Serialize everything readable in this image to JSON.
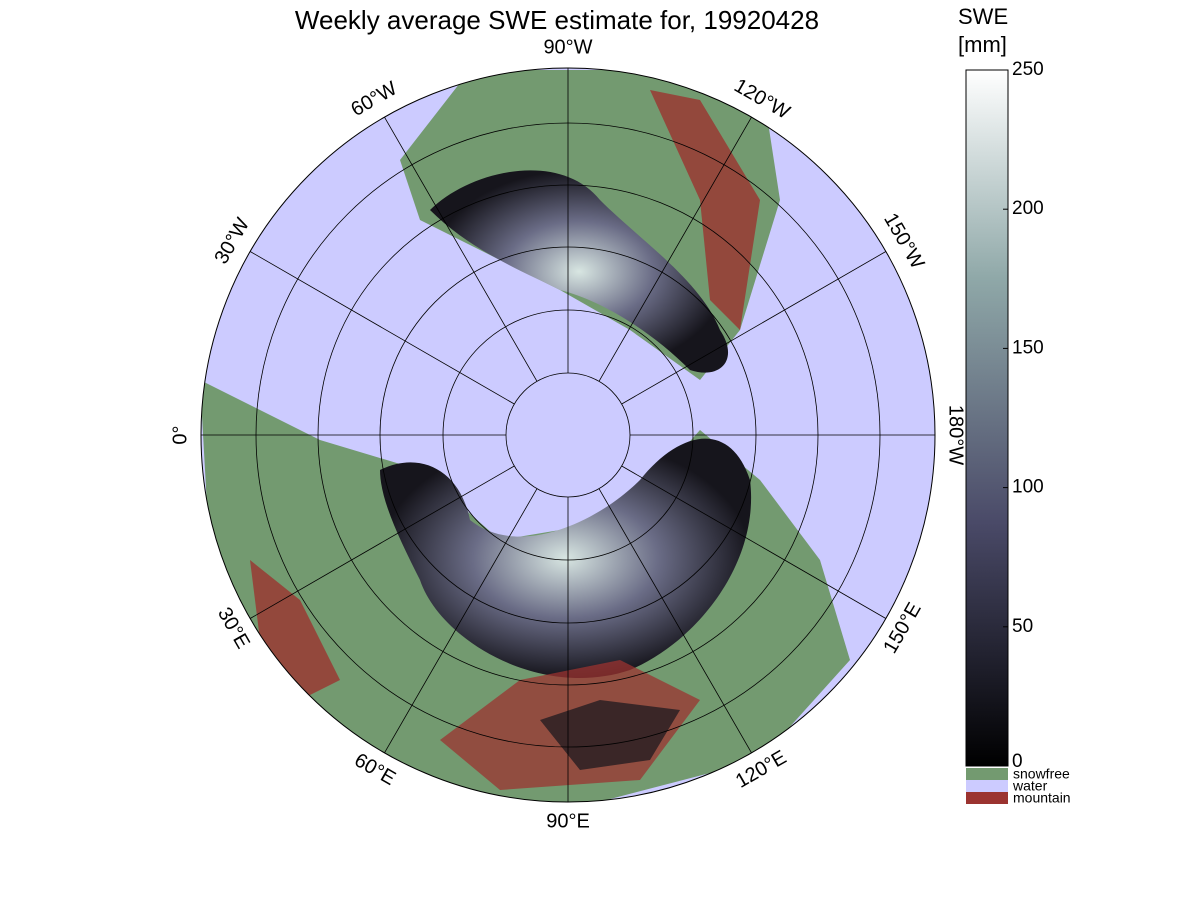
{
  "title": "Weekly average SWE estimate for, 19920428",
  "lon_labels": [
    "90°W",
    "120°W",
    "150°W",
    "180°W",
    "150°E",
    "120°E",
    "90°E",
    "60°E",
    "30°E",
    "0°",
    "30°W",
    "60°W"
  ],
  "colorbar": {
    "title": [
      "SWE",
      "[mm]"
    ],
    "lim": [
      0,
      250
    ],
    "ticks": [
      0,
      50,
      100,
      150,
      200,
      250
    ]
  },
  "legend": [
    {
      "name": "snowfree",
      "color": "#739a70"
    },
    {
      "name": "water",
      "color": "#cccbff"
    },
    {
      "name": "mountain",
      "color": "#9b3330"
    }
  ]
}
